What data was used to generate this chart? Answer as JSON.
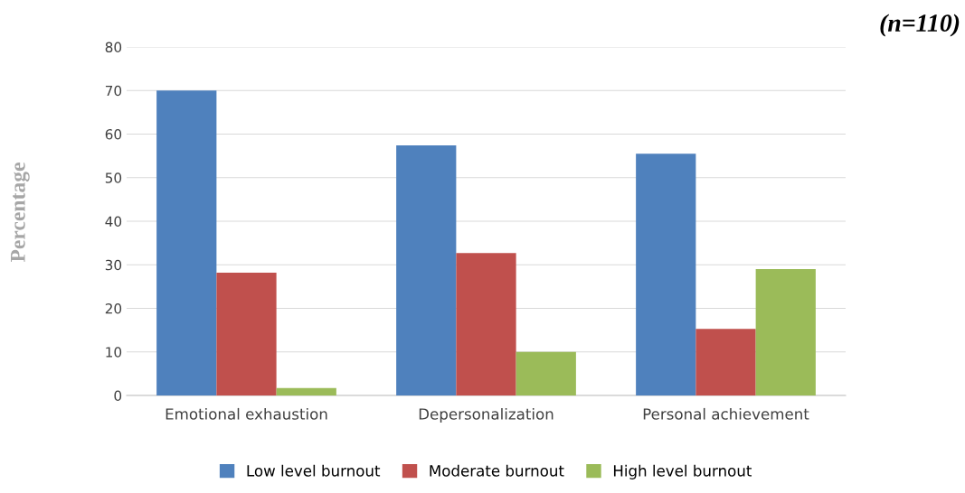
{
  "chart_data": {
    "type": "bar",
    "ylabel": "Percentage",
    "annotations": [
      "(n=110)"
    ],
    "categories": [
      "Emotional exhaustion",
      "Depersonalization",
      "Personal achievement"
    ],
    "series": [
      {
        "name": "Low level burnout",
        "color": "#4f81bd",
        "values": [
          70,
          57.4,
          55.5
        ]
      },
      {
        "name": "Moderate burnout",
        "color": "#c0504d",
        "values": [
          28.2,
          32.7,
          15.3
        ]
      },
      {
        "name": "High level burnout",
        "color": "#9bbb59",
        "values": [
          1.7,
          10,
          29
        ]
      }
    ],
    "ylim": [
      0,
      80
    ],
    "yticks": [
      0,
      10,
      20,
      30,
      40,
      50,
      60,
      70,
      80
    ],
    "grid": "y",
    "legend": "bottom"
  }
}
